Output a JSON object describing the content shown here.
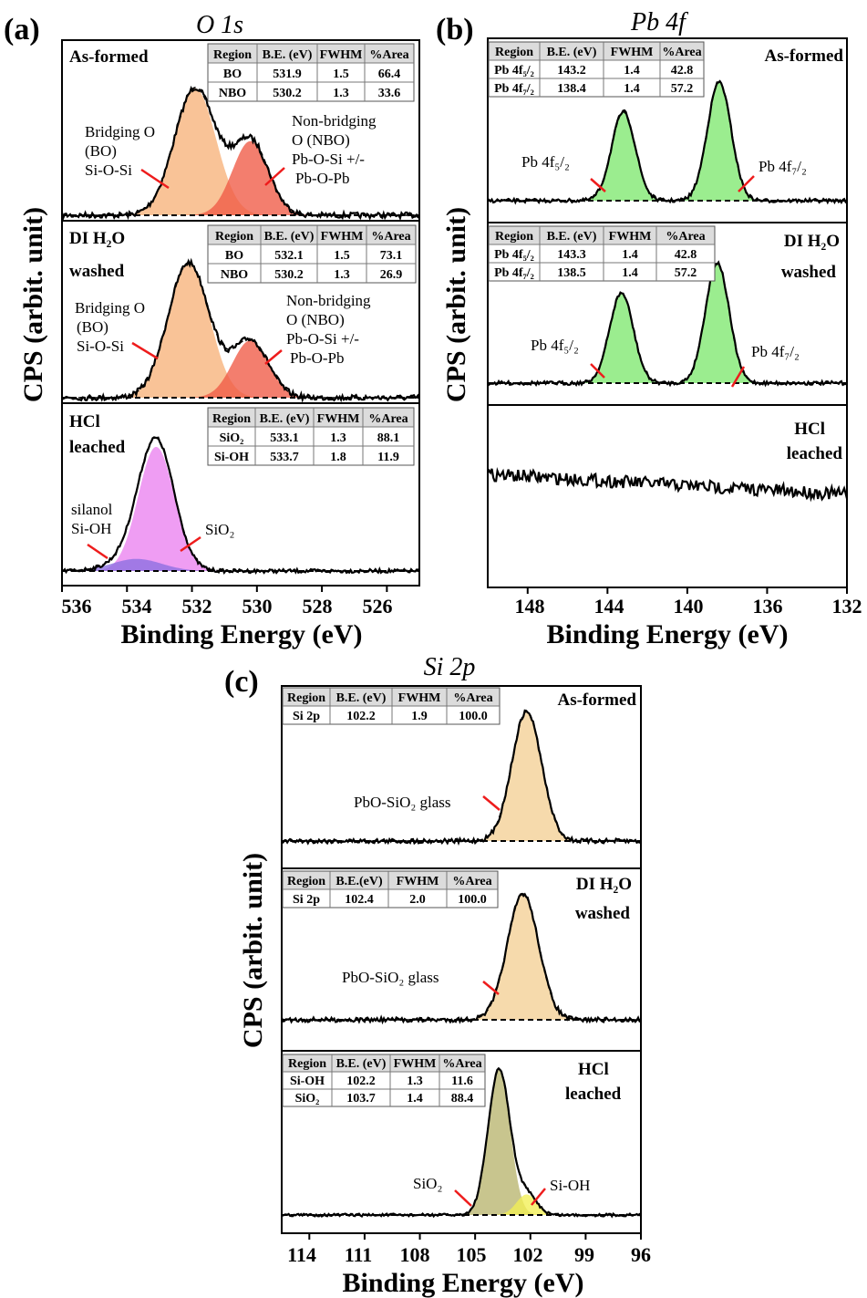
{
  "figure": {
    "panels": [
      {
        "letter": "(a)",
        "title": "O 1s",
        "ylabel": "CPS (arbit. unit)",
        "xlabel": "Binding Energy (eV)",
        "xticks": [
          "536",
          "534",
          "532",
          "530",
          "528",
          "526"
        ]
      },
      {
        "letter": "(b)",
        "title": "Pb 4f",
        "ylabel": "CPS (arbit. unit)",
        "xlabel": "Binding Energy (eV)",
        "xticks": [
          "148",
          "144",
          "140",
          "136",
          "132"
        ]
      },
      {
        "letter": "(c)",
        "title": "Si 2p",
        "ylabel": "CPS (arbit. unit)",
        "xlabel": "Binding Energy (eV)",
        "xticks": [
          "114",
          "111",
          "108",
          "105",
          "102",
          "99",
          "96"
        ]
      }
    ]
  },
  "colors": {
    "bo": "#f7b27a",
    "nbo": "#ef5a45",
    "sio2_o": "#ea82ef",
    "sioh_o": "#8a6fe0",
    "pb": "#7fe86f",
    "si_glass": "#f3cf95",
    "sio2_si": "#b9b56e",
    "sioh_si": "#f2ef55",
    "marker": "#ee1c1c"
  },
  "chart_data": [
    {
      "type": "line",
      "panel": "(a)",
      "title": "O 1s",
      "xlabel": "Binding Energy (eV)",
      "ylabel": "CPS (arbit. unit)",
      "xlim": [
        536,
        525
      ],
      "x_ticks": [
        536,
        534,
        532,
        530,
        528,
        526
      ],
      "subplots": [
        {
          "sample_lines": [
            "As-formed"
          ],
          "table": {
            "headers": [
              "Region",
              "B.E. (eV)",
              "FWHM",
              "%Area"
            ],
            "rows": [
              [
                "BO",
                "531.9",
                "1.5",
                "66.4"
              ],
              [
                "NBO",
                "530.2",
                "1.3",
                "33.6"
              ]
            ]
          },
          "components": [
            {
              "name": "BO",
              "center": 531.9,
              "fwhm": 1.5,
              "area_pct": 66.4,
              "color_key": "bo"
            },
            {
              "name": "NBO",
              "center": 530.2,
              "fwhm": 1.3,
              "area_pct": 33.6,
              "color_key": "nbo"
            }
          ],
          "annotations": [
            {
              "lines": [
                "Bridging O",
                "(BO)",
                "Si-O-Si"
              ]
            },
            {
              "lines": [
                "Non-bridging",
                "O (NBO)",
                "Pb-O-Si +/-",
                "Pb-O-Pb"
              ]
            }
          ]
        },
        {
          "sample_lines": [
            "DI H₂O",
            "washed"
          ],
          "table": {
            "headers": [
              "Region",
              "B.E. (eV)",
              "FWHM",
              "%Area"
            ],
            "rows": [
              [
                "BO",
                "532.1",
                "1.5",
                "73.1"
              ],
              [
                "NBO",
                "530.2",
                "1.3",
                "26.9"
              ]
            ]
          },
          "components": [
            {
              "name": "BO",
              "center": 532.1,
              "fwhm": 1.5,
              "area_pct": 73.1,
              "color_key": "bo"
            },
            {
              "name": "NBO",
              "center": 530.2,
              "fwhm": 1.3,
              "area_pct": 26.9,
              "color_key": "nbo"
            }
          ],
          "annotations": [
            {
              "lines": [
                "Bridging O",
                "(BO)",
                "Si-O-Si"
              ]
            },
            {
              "lines": [
                "Non-bridging",
                "O (NBO)",
                "Pb-O-Si +/-",
                "Pb-O-Pb"
              ]
            }
          ]
        },
        {
          "sample_lines": [
            "HCl",
            "leached"
          ],
          "table": {
            "headers": [
              "Region",
              "B.E. (eV)",
              "FWHM",
              "%Area"
            ],
            "rows": [
              [
                "SiO₂",
                "533.1",
                "1.3",
                "88.1"
              ],
              [
                "Si-OH",
                "533.7",
                "1.8",
                "11.9"
              ]
            ]
          },
          "components": [
            {
              "name": "SiO₂",
              "center": 533.1,
              "fwhm": 1.3,
              "area_pct": 88.1,
              "color_key": "sio2_o"
            },
            {
              "name": "Si-OH",
              "center": 533.7,
              "fwhm": 1.8,
              "area_pct": 11.9,
              "color_key": "sioh_o"
            }
          ],
          "annotations": [
            {
              "lines": [
                "silanol",
                "Si-OH"
              ]
            },
            {
              "lines": [
                "SiO₂"
              ]
            }
          ]
        }
      ]
    },
    {
      "type": "line",
      "panel": "(b)",
      "title": "Pb 4f",
      "xlabel": "Binding Energy (eV)",
      "ylabel": "CPS (arbit. unit)",
      "xlim": [
        150,
        132
      ],
      "x_ticks": [
        148,
        144,
        140,
        136,
        132
      ],
      "subplots": [
        {
          "sample_lines": [
            "As-formed"
          ],
          "table": {
            "headers": [
              "Region",
              "B.E. (eV)",
              "FWHM",
              "%Area"
            ],
            "rows": [
              [
                "Pb 4f₅/₂",
                "143.2",
                "1.4",
                "42.8"
              ],
              [
                "Pb 4f₇/₂",
                "138.4",
                "1.4",
                "57.2"
              ]
            ]
          },
          "components": [
            {
              "name": "Pb 4f5/2",
              "center": 143.2,
              "fwhm": 1.4,
              "area_pct": 42.8,
              "color_key": "pb"
            },
            {
              "name": "Pb 4f7/2",
              "center": 138.4,
              "fwhm": 1.4,
              "area_pct": 57.2,
              "color_key": "pb"
            }
          ],
          "annotations": [
            {
              "lines": [
                "Pb 4f₅/₂"
              ]
            },
            {
              "lines": [
                "Pb 4f₇/₂"
              ]
            }
          ]
        },
        {
          "sample_lines": [
            "DI H₂O",
            "washed"
          ],
          "table": {
            "headers": [
              "Region",
              "B.E. (eV)",
              "FWHM",
              "%Area"
            ],
            "rows": [
              [
                "Pb 4f₅/₂",
                "143.3",
                "1.4",
                "42.8"
              ],
              [
                "Pb 4f₇/₂",
                "138.5",
                "1.4",
                "57.2"
              ]
            ]
          },
          "components": [
            {
              "name": "Pb 4f5/2",
              "center": 143.3,
              "fwhm": 1.4,
              "area_pct": 42.8,
              "color_key": "pb"
            },
            {
              "name": "Pb 4f7/2",
              "center": 138.5,
              "fwhm": 1.4,
              "area_pct": 57.2,
              "color_key": "pb"
            }
          ],
          "annotations": [
            {
              "lines": [
                "Pb 4f₅/₂"
              ]
            },
            {
              "lines": [
                "Pb 4f₇/₂"
              ]
            }
          ]
        },
        {
          "sample_lines": [
            "HCl",
            "leached"
          ],
          "table": null,
          "components": [],
          "annotations": []
        }
      ]
    },
    {
      "type": "line",
      "panel": "(c)",
      "title": "Si 2p",
      "xlabel": "Binding Energy (eV)",
      "ylabel": "CPS (arbit. unit)",
      "xlim": [
        115.5,
        96
      ],
      "x_ticks": [
        114,
        111,
        108,
        105,
        102,
        99,
        96
      ],
      "subplots": [
        {
          "sample_lines": [
            "As-formed"
          ],
          "table": {
            "headers": [
              "Region",
              "B.E. (eV)",
              "FWHM",
              "%Area"
            ],
            "rows": [
              [
                "Si 2p",
                "102.2",
                "1.9",
                "100.0"
              ]
            ]
          },
          "components": [
            {
              "name": "Si 2p",
              "center": 102.2,
              "fwhm": 1.9,
              "area_pct": 100.0,
              "color_key": "si_glass"
            }
          ],
          "annotations": [
            {
              "lines": [
                "PbO-SiO₂ glass"
              ]
            }
          ]
        },
        {
          "sample_lines": [
            "DI H₂O",
            "washed"
          ],
          "table": {
            "headers": [
              "Region",
              "B.E.(eV)",
              "FWHM",
              "%Area"
            ],
            "rows": [
              [
                "Si 2p",
                "102.4",
                "2.0",
                "100.0"
              ]
            ]
          },
          "components": [
            {
              "name": "Si 2p",
              "center": 102.4,
              "fwhm": 2.0,
              "area_pct": 100.0,
              "color_key": "si_glass"
            }
          ],
          "annotations": [
            {
              "lines": [
                "PbO-SiO₂ glass"
              ]
            }
          ]
        },
        {
          "sample_lines": [
            "HCl",
            "leached"
          ],
          "table": {
            "headers": [
              "Region",
              "B.E. (eV)",
              "FWHM",
              "%Area"
            ],
            "rows": [
              [
                "Si-OH",
                "102.2",
                "1.3",
                "11.6"
              ],
              [
                "SiO₂",
                "103.7",
                "1.4",
                "88.4"
              ]
            ]
          },
          "components": [
            {
              "name": "SiO₂",
              "center": 103.7,
              "fwhm": 1.4,
              "area_pct": 88.4,
              "color_key": "sio2_si"
            },
            {
              "name": "Si-OH",
              "center": 102.2,
              "fwhm": 1.3,
              "area_pct": 11.6,
              "color_key": "sioh_si"
            }
          ],
          "annotations": [
            {
              "lines": [
                "SiO₂"
              ]
            },
            {
              "lines": [
                "Si-OH"
              ]
            }
          ]
        }
      ]
    }
  ]
}
